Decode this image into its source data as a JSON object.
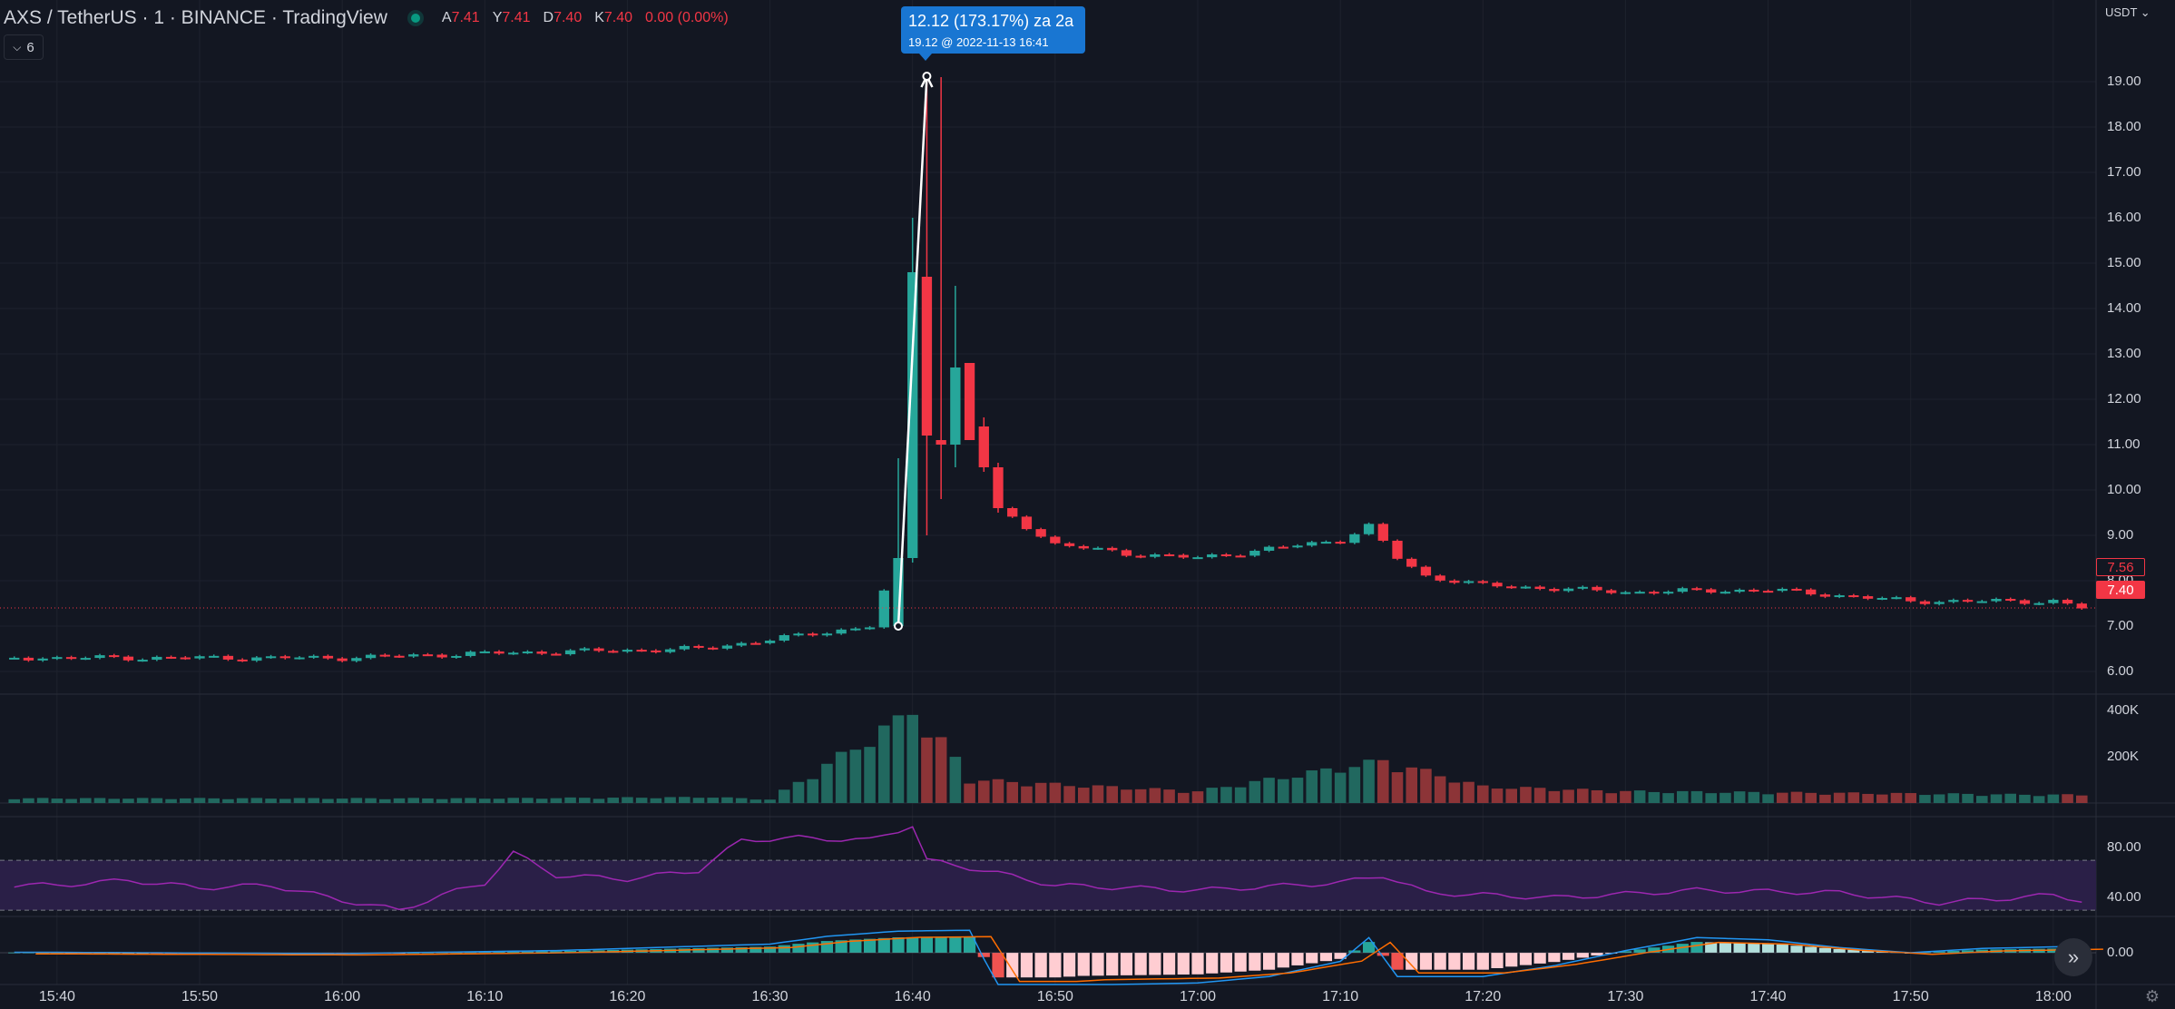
{
  "header": {
    "symbol": "AXS / TetherUS · 1 · BINANCE · TradingView",
    "ohlc": [
      {
        "label": "A",
        "value": "7.41"
      },
      {
        "label": "Y",
        "value": "7.41"
      },
      {
        "label": "D",
        "value": "7.40"
      },
      {
        "label": "K",
        "value": "7.40"
      }
    ],
    "change": "0.00 (0.00%)",
    "collapse_count": "6"
  },
  "tooltip": {
    "line1": "12.12 (173.17%) za 2a",
    "line2": "19.12 @ 2022-11-13  16:41"
  },
  "price_axis": {
    "unit": "USDT",
    "labels": [
      "19.00",
      "18.00",
      "17.00",
      "16.00",
      "15.00",
      "14.00",
      "13.00",
      "12.00",
      "11.00",
      "10.00",
      "9.00",
      "8.00",
      "7.00",
      "6.00"
    ],
    "values": [
      19,
      18,
      17,
      16,
      15,
      14,
      13,
      12,
      11,
      10,
      9,
      8,
      7,
      6
    ]
  },
  "price_tags": {
    "outline": "7.56",
    "fill": "7.40"
  },
  "volume_axis": {
    "labels": [
      "400K",
      "200K"
    ],
    "values": [
      400000,
      200000
    ]
  },
  "rsi_axis": {
    "labels": [
      "80.00",
      "40.00"
    ],
    "values": [
      80,
      40
    ]
  },
  "macd_axis": {
    "labels": [
      "0.00"
    ]
  },
  "time_axis": [
    "15:40",
    "15:50",
    "16:00",
    "16:10",
    "16:20",
    "16:30",
    "16:40",
    "16:50",
    "17:00",
    "17:10",
    "17:20",
    "17:30",
    "17:40",
    "17:50",
    "18:00"
  ],
  "colors": {
    "up": "#26a69a",
    "down": "#f23645",
    "volume_up": "#21685f",
    "volume_down": "#8c3437",
    "rsi": "#9c27b0",
    "rsi_band": "#2a1f47",
    "macd_line": "#2196f3",
    "signal_line": "#ff6d00",
    "hist_up_strong": "#26a69a",
    "hist_up_weak": "#b2dfdb",
    "hist_down_strong": "#ef5350",
    "hist_down_weak": "#ffcdd2",
    "tooltip": "#1976d2"
  },
  "chart_data": [
    {
      "type": "candlestick",
      "title": "AXS / TetherUS · 1 · BINANCE · TradingView",
      "x_range": [
        "15:36",
        "18:03"
      ],
      "ylim": [
        5.5,
        20.8
      ],
      "y_unit": "USDT",
      "candles_key_points": [
        {
          "time": "15:40",
          "close": 6.3
        },
        {
          "time": "16:00",
          "close": 6.3
        },
        {
          "time": "16:10",
          "close": 6.4
        },
        {
          "time": "16:25",
          "close": 6.5
        },
        {
          "time": "16:30",
          "close": 6.7
        },
        {
          "time": "16:37",
          "close": 7.0
        },
        {
          "time": "16:39",
          "open": 7.0,
          "high": 10.7,
          "low": 6.9,
          "close": 8.5
        },
        {
          "time": "16:40",
          "open": 8.5,
          "high": 16.0,
          "low": 8.4,
          "close": 14.8
        },
        {
          "time": "16:41",
          "open": 14.7,
          "high": 19.12,
          "low": 9.0,
          "close": 11.2
        },
        {
          "time": "16:42",
          "open": 11.1,
          "high": 19.1,
          "low": 9.8,
          "close": 11.0
        },
        {
          "time": "16:43",
          "open": 11.0,
          "high": 14.5,
          "low": 10.5,
          "close": 12.7
        },
        {
          "time": "16:44",
          "open": 12.8,
          "high": 12.8,
          "low": 11.1,
          "close": 11.1
        },
        {
          "time": "16:45",
          "open": 11.4,
          "high": 11.6,
          "low": 10.4,
          "close": 10.5
        },
        {
          "time": "16:46",
          "open": 10.5,
          "high": 10.6,
          "low": 9.5,
          "close": 9.6
        },
        {
          "time": "16:50",
          "close": 8.8
        },
        {
          "time": "16:55",
          "close": 8.6
        },
        {
          "time": "17:00",
          "close": 8.5
        },
        {
          "time": "17:05",
          "close": 8.7
        },
        {
          "time": "17:10",
          "close": 8.9
        },
        {
          "time": "17:12",
          "close": 9.2
        },
        {
          "time": "17:14",
          "close": 8.5
        },
        {
          "time": "17:16",
          "close": 8.1
        },
        {
          "time": "17:20",
          "close": 7.9
        },
        {
          "time": "17:30",
          "close": 7.75
        },
        {
          "time": "17:40",
          "close": 7.8
        },
        {
          "time": "17:50",
          "close": 7.55
        },
        {
          "time": "18:00",
          "close": 7.55
        },
        {
          "time": "18:02",
          "close": 7.4
        }
      ],
      "measure": {
        "from_time": "16:39",
        "from_price": 7.0,
        "to_time": "16:41",
        "to_price": 19.12,
        "label": "12.12 (173.17%) za 2a"
      },
      "last_price": 7.4,
      "price_line": 7.4
    },
    {
      "type": "bar",
      "name": "Volume",
      "ylim": [
        0,
        430000
      ],
      "key_points": [
        {
          "time": "16:10",
          "value": 20000
        },
        {
          "time": "16:26",
          "value": 25000
        },
        {
          "time": "16:30",
          "value": 15000
        },
        {
          "time": "16:39",
          "value": 350000
        },
        {
          "time": "16:40",
          "value": 420000
        },
        {
          "time": "16:41",
          "value": 300000
        },
        {
          "time": "16:42",
          "value": 260000
        },
        {
          "time": "16:43",
          "value": 190000
        },
        {
          "time": "16:44",
          "value": 100000
        },
        {
          "time": "16:50",
          "value": 80000
        },
        {
          "time": "17:00",
          "value": 50000
        },
        {
          "time": "17:13",
          "value": 180000
        },
        {
          "time": "17:15",
          "value": 150000
        },
        {
          "time": "17:20",
          "value": 70000
        },
        {
          "time": "17:30",
          "value": 50000
        },
        {
          "time": "17:50",
          "value": 40000
        },
        {
          "time": "18:00",
          "value": 35000
        }
      ]
    },
    {
      "type": "line",
      "name": "RSI",
      "ylim": [
        25,
        105
      ],
      "bands": [
        70,
        30
      ],
      "key_points": [
        {
          "time": "15:40",
          "value": 50
        },
        {
          "time": "15:45",
          "value": 54
        },
        {
          "time": "15:50",
          "value": 48
        },
        {
          "time": "15:55",
          "value": 50
        },
        {
          "time": "16:00",
          "value": 38
        },
        {
          "time": "16:04",
          "value": 30
        },
        {
          "time": "16:07",
          "value": 42
        },
        {
          "time": "16:10",
          "value": 52
        },
        {
          "time": "16:12",
          "value": 76
        },
        {
          "time": "16:15",
          "value": 58
        },
        {
          "time": "16:20",
          "value": 55
        },
        {
          "time": "16:25",
          "value": 62
        },
        {
          "time": "16:28",
          "value": 86
        },
        {
          "time": "16:32",
          "value": 88
        },
        {
          "time": "16:37",
          "value": 86
        },
        {
          "time": "16:40",
          "value": 98
        },
        {
          "time": "16:41",
          "value": 70
        },
        {
          "time": "16:45",
          "value": 62
        },
        {
          "time": "16:50",
          "value": 50
        },
        {
          "time": "17:00",
          "value": 46
        },
        {
          "time": "17:10",
          "value": 52
        },
        {
          "time": "17:13",
          "value": 58
        },
        {
          "time": "17:16",
          "value": 44
        },
        {
          "time": "17:25",
          "value": 40
        },
        {
          "time": "17:35",
          "value": 46
        },
        {
          "time": "17:45",
          "value": 44
        },
        {
          "time": "17:52",
          "value": 36
        },
        {
          "time": "18:00",
          "value": 42
        },
        {
          "time": "18:02",
          "value": 38
        }
      ]
    },
    {
      "type": "bar",
      "name": "MACD",
      "ylim": [
        -1.0,
        1.0
      ],
      "key_points": [
        {
          "time": "15:40",
          "value": 0.01
        },
        {
          "time": "16:00",
          "value": -0.02
        },
        {
          "time": "16:15",
          "value": 0.05
        },
        {
          "time": "16:30",
          "value": 0.2
        },
        {
          "time": "16:34",
          "value": 0.38
        },
        {
          "time": "16:39",
          "value": 0.5
        },
        {
          "time": "16:44",
          "value": 0.52
        },
        {
          "time": "16:46",
          "value": -0.8
        },
        {
          "time": "16:50",
          "value": -0.8
        },
        {
          "time": "16:52",
          "value": -0.75
        },
        {
          "time": "17:00",
          "value": -0.7
        },
        {
          "time": "17:05",
          "value": -0.55
        },
        {
          "time": "17:10",
          "value": -0.2
        },
        {
          "time": "17:12",
          "value": 0.35
        },
        {
          "time": "17:14",
          "value": -0.55
        },
        {
          "time": "17:20",
          "value": -0.55
        },
        {
          "time": "17:25",
          "value": -0.3
        },
        {
          "time": "17:30",
          "value": 0.05
        },
        {
          "time": "17:35",
          "value": 0.35
        },
        {
          "time": "17:40",
          "value": 0.3
        },
        {
          "time": "17:45",
          "value": 0.12
        },
        {
          "time": "17:50",
          "value": 0.0
        },
        {
          "time": "17:55",
          "value": 0.1
        },
        {
          "time": "18:02",
          "value": 0.15
        }
      ]
    }
  ]
}
